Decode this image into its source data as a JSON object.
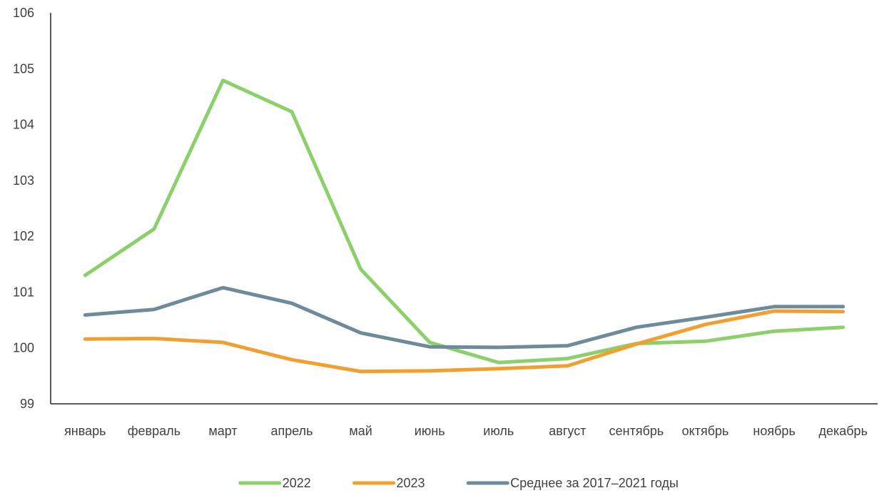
{
  "chart_data": {
    "type": "line",
    "title": "",
    "xlabel": "",
    "ylabel": "",
    "categories": [
      "январь",
      "февраль",
      "март",
      "апрель",
      "май",
      "июнь",
      "июль",
      "август",
      "сентябрь",
      "октябрь",
      "ноябрь",
      "декабрь"
    ],
    "ylim": [
      99,
      106
    ],
    "yticks": [
      "99",
      "100",
      "101",
      "102",
      "103",
      "104",
      "105",
      "106"
    ],
    "grid": false,
    "legend_position": "bottom",
    "series": [
      {
        "name": "2022",
        "color": "#8dcf6a",
        "values": [
          101.3,
          102.13,
          104.79,
          104.23,
          101.41,
          100.1,
          99.74,
          99.81,
          100.08,
          100.12,
          100.3,
          100.37
        ]
      },
      {
        "name": "2023",
        "color": "#f0a030",
        "values": [
          100.16,
          100.17,
          100.1,
          99.79,
          99.58,
          99.59,
          99.63,
          99.68,
          100.07,
          100.42,
          100.66,
          100.65
        ]
      },
      {
        "name": "Среднее за 2017–2021 годы",
        "color": "#6e8b9c",
        "values": [
          100.59,
          100.69,
          101.08,
          100.8,
          100.27,
          100.02,
          100.01,
          100.04,
          100.37,
          100.55,
          100.74,
          100.74
        ]
      }
    ]
  }
}
